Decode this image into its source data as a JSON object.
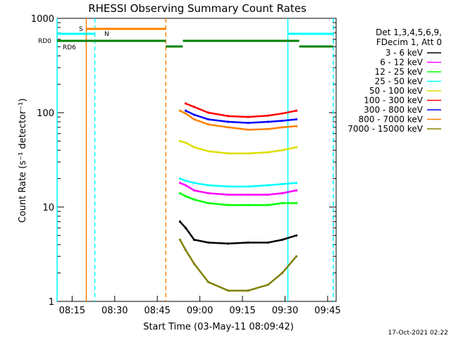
{
  "chart_data": {
    "type": "line",
    "title": "RHESSI Observing Summary Count Rates",
    "xlabel": "Start Time (03-May-11 08:09:42)",
    "ylabel": "Count Rate (s⁻¹ detector⁻¹)",
    "yscale": "log",
    "ylim": [
      1,
      1000
    ],
    "xlim": [
      "08:09:42",
      "09:48:00"
    ],
    "x_ticks": [
      "08:15",
      "08:30",
      "08:45",
      "09:00",
      "09:15",
      "09:30",
      "09:45"
    ],
    "y_ticks": [
      "1",
      "10",
      "100",
      "1000"
    ],
    "legend_header": [
      "Det 1,3,4,5,6,9,",
      "FDecim 1, Att 0"
    ],
    "series": [
      {
        "name": "3 - 6 keV",
        "color": "#000000",
        "x": [
          "08:53",
          "08:55",
          "08:58",
          "09:03",
          "09:10",
          "09:17",
          "09:24",
          "09:29",
          "09:34"
        ],
        "values": [
          7,
          6,
          4.5,
          4.2,
          4.1,
          4.2,
          4.2,
          4.5,
          5
        ]
      },
      {
        "name": "6 - 12 keV",
        "color": "#ff00ff",
        "x": [
          "08:53",
          "08:55",
          "08:58",
          "09:03",
          "09:10",
          "09:17",
          "09:24",
          "09:29",
          "09:34"
        ],
        "values": [
          18,
          17,
          15,
          14,
          13.5,
          13.5,
          13.5,
          14,
          15
        ]
      },
      {
        "name": "12 - 25 keV",
        "color": "#00ff00",
        "x": [
          "08:53",
          "08:55",
          "08:58",
          "09:03",
          "09:10",
          "09:17",
          "09:24",
          "09:29",
          "09:34"
        ],
        "values": [
          14,
          13,
          12,
          11,
          10.5,
          10.5,
          10.5,
          11,
          11
        ]
      },
      {
        "name": "25 - 50 keV",
        "color": "#00ffff",
        "x": [
          "08:53",
          "08:55",
          "08:58",
          "09:03",
          "09:10",
          "09:17",
          "09:24",
          "09:29",
          "09:34"
        ],
        "values": [
          20,
          19,
          18,
          17,
          16.5,
          16.5,
          17,
          17.5,
          18
        ]
      },
      {
        "name": "50 - 100 keV",
        "color": "#dddd00",
        "x": [
          "08:53",
          "08:55",
          "08:58",
          "09:03",
          "09:10",
          "09:17",
          "09:24",
          "09:29",
          "09:34"
        ],
        "values": [
          50,
          48,
          43,
          39,
          37,
          37,
          38,
          40,
          43
        ]
      },
      {
        "name": "100 - 300 keV",
        "color": "#ff0000",
        "x": [
          "08:55",
          "08:58",
          "09:03",
          "09:10",
          "09:17",
          "09:24",
          "09:29",
          "09:34"
        ],
        "values": [
          125,
          115,
          100,
          92,
          90,
          93,
          98,
          105
        ]
      },
      {
        "name": "300 - 800 keV",
        "color": "#0000ff",
        "x": [
          "08:55",
          "08:58",
          "09:03",
          "09:10",
          "09:17",
          "09:24",
          "09:29",
          "09:34"
        ],
        "values": [
          105,
          95,
          85,
          80,
          78,
          80,
          82,
          85
        ]
      },
      {
        "name": "800 - 7000 keV",
        "color": "#ff8000",
        "x": [
          "08:53",
          "08:55",
          "08:58",
          "09:03",
          "09:10",
          "09:17",
          "09:24",
          "09:29",
          "09:34"
        ],
        "values": [
          105,
          98,
          85,
          75,
          70,
          66,
          67,
          70,
          72
        ]
      },
      {
        "name": "7000 - 15000 keV",
        "color": "#808000",
        "x": [
          "08:53",
          "08:55",
          "08:58",
          "09:03",
          "09:10",
          "09:17",
          "09:24",
          "09:29",
          "09:34"
        ],
        "values": [
          4.5,
          3.5,
          2.5,
          1.6,
          1.3,
          1.3,
          1.5,
          2,
          3
        ]
      }
    ],
    "flag_bars": [
      {
        "label": "S",
        "color": "#ff8000",
        "segments": [
          [
            "08:20",
            "08:48"
          ]
        ]
      },
      {
        "label": "N",
        "color": "#00ffff",
        "segments": [
          [
            "08:09:42",
            "08:23"
          ],
          [
            "09:31",
            "09:47"
          ]
        ]
      },
      {
        "label": "RD0",
        "color": "#008000",
        "segments": [
          [
            "08:09:42",
            "08:48"
          ],
          [
            "08:54",
            "09:35"
          ]
        ]
      },
      {
        "label": "RD6",
        "color": "#008000",
        "segments": [
          [
            "08:48",
            "08:54"
          ],
          [
            "09:35",
            "09:47"
          ]
        ]
      }
    ],
    "vertical_lines": [
      {
        "color": "#00ffff",
        "style": "solid",
        "x": "08:09:42"
      },
      {
        "color": "#ff8000",
        "style": "solid",
        "x": "08:20"
      },
      {
        "color": "#00ffff",
        "style": "dashed",
        "x": "08:23"
      },
      {
        "color": "#ff8000",
        "style": "dashed",
        "x": "08:48"
      },
      {
        "color": "#00ffff",
        "style": "solid",
        "x": "09:31"
      },
      {
        "color": "#00ffff",
        "style": "dashed",
        "x": "09:47"
      }
    ]
  },
  "timestamp": "17-Oct-2021 02:22"
}
